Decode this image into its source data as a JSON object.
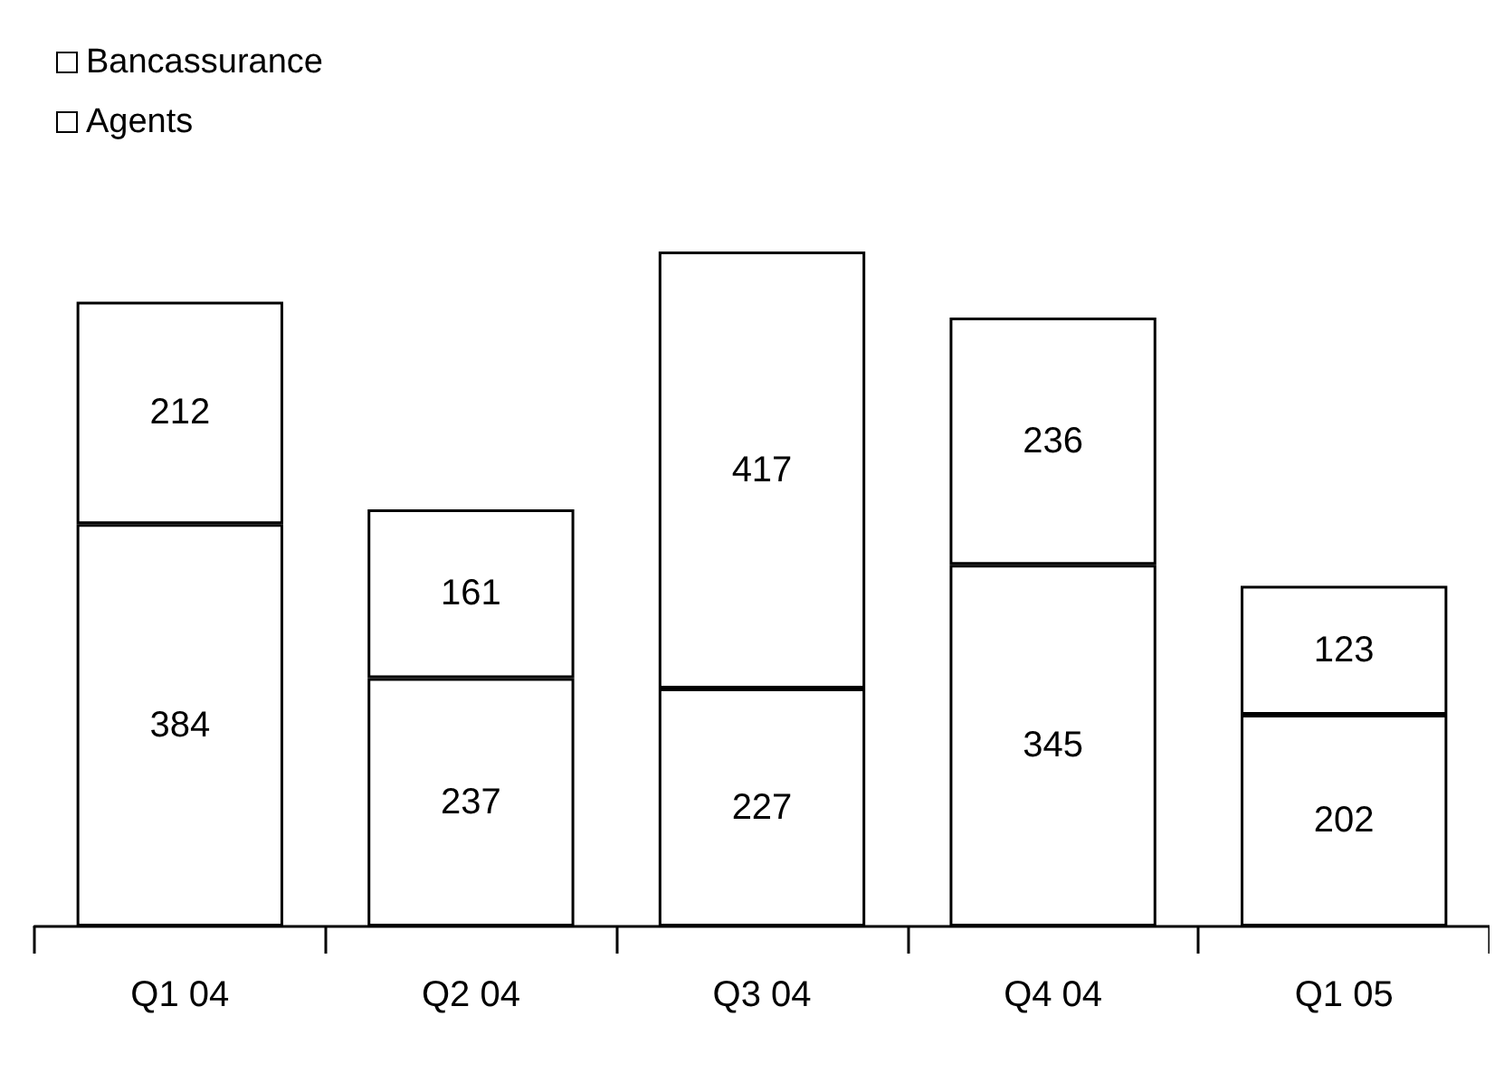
{
  "chart_data": {
    "type": "bar",
    "stacked": true,
    "data_labels": true,
    "legend": "top left",
    "grid": false,
    "categories": [
      "Q1 04",
      "Q2 04",
      "Q3 04",
      "Q4 04",
      "Q1 05"
    ],
    "series": [
      {
        "name": "Agents",
        "color": "#ffffff",
        "values": [
          384,
          237,
          227,
          345,
          202
        ]
      },
      {
        "name": "Bancassurance",
        "color": "#ffffff",
        "values": [
          212,
          161,
          417,
          236,
          123
        ]
      }
    ]
  }
}
